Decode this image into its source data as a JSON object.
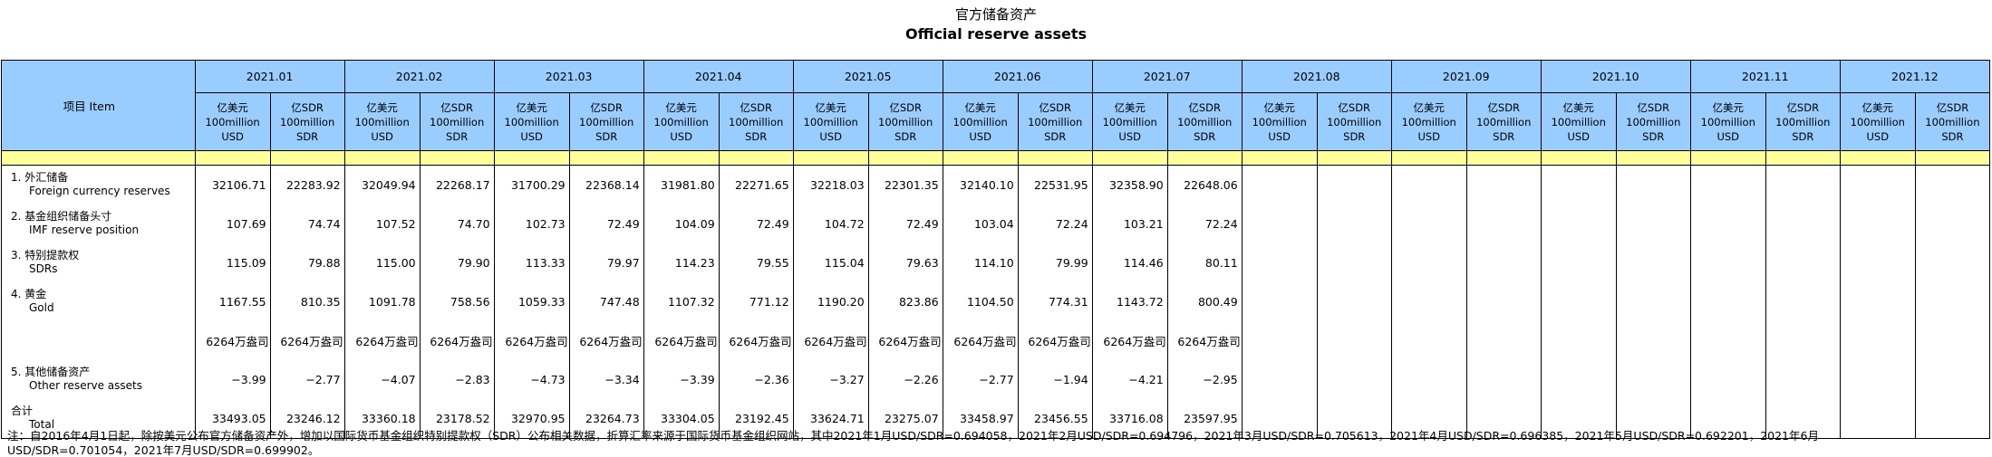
{
  "title_cn": "官方储备资产",
  "title_en": "Official reserve assets",
  "item_header": "项目  Item",
  "months": [
    "2021.01",
    "2021.02",
    "2021.03",
    "2021.04",
    "2021.05",
    "2021.06",
    "2021.07",
    "2021.08",
    "2021.09",
    "2021.10",
    "2021.11",
    "2021.12"
  ],
  "unit_usd": {
    "cn": "亿美元",
    "en1": "100million",
    "en2": "USD"
  },
  "unit_sdr": {
    "cn": "亿SDR",
    "en1": "100million",
    "en2": "SDR"
  },
  "rows": [
    {
      "cn": "1. 外汇储备",
      "en": "Foreign currency reserves",
      "values": [
        "32106.71",
        "22283.92",
        "32049.94",
        "22268.17",
        "31700.29",
        "22368.14",
        "31981.80",
        "22271.65",
        "32218.03",
        "22301.35",
        "32140.10",
        "22531.95",
        "32358.90",
        "22648.06",
        "",
        "",
        "",
        "",
        "",
        "",
        "",
        "",
        "",
        ""
      ]
    },
    {
      "cn": "2. 基金组织储备头寸",
      "en": "IMF reserve position",
      "values": [
        "107.69",
        "74.74",
        "107.52",
        "74.70",
        "102.73",
        "72.49",
        "104.09",
        "72.49",
        "104.72",
        "72.49",
        "103.04",
        "72.24",
        "103.21",
        "72.24",
        "",
        "",
        "",
        "",
        "",
        "",
        "",
        "",
        "",
        ""
      ]
    },
    {
      "cn": "3. 特别提款权",
      "en": "SDRs",
      "values": [
        "115.09",
        "79.88",
        "115.00",
        "79.90",
        "113.33",
        "79.97",
        "114.23",
        "79.55",
        "115.04",
        "79.63",
        "114.10",
        "79.99",
        "114.46",
        "80.11",
        "",
        "",
        "",
        "",
        "",
        "",
        "",
        "",
        "",
        ""
      ]
    },
    {
      "cn": "4. 黄金",
      "en": "Gold",
      "values": [
        "1167.55",
        "810.35",
        "1091.78",
        "758.56",
        "1059.33",
        "747.48",
        "1107.32",
        "771.12",
        "1190.20",
        "823.86",
        "1104.50",
        "774.31",
        "1143.72",
        "800.49",
        "",
        "",
        "",
        "",
        "",
        "",
        "",
        "",
        "",
        ""
      ]
    },
    {
      "cn": "",
      "en": "",
      "values": [
        "6264万盎司",
        "6264万盎司",
        "6264万盎司",
        "6264万盎司",
        "6264万盎司",
        "6264万盎司",
        "6264万盎司",
        "6264万盎司",
        "6264万盎司",
        "6264万盎司",
        "6264万盎司",
        "6264万盎司",
        "6264万盎司",
        "6264万盎司",
        "",
        "",
        "",
        "",
        "",
        "",
        "",
        "",
        "",
        ""
      ]
    },
    {
      "cn": "5. 其他储备资产",
      "en": "Other reserve assets",
      "values": [
        "−3.99",
        "−2.77",
        "−4.07",
        "−2.83",
        "−4.73",
        "−3.34",
        "−3.39",
        "−2.36",
        "−3.27",
        "−2.26",
        "−2.77",
        "−1.94",
        "−4.21",
        "−2.95",
        "",
        "",
        "",
        "",
        "",
        "",
        "",
        "",
        "",
        ""
      ]
    },
    {
      "cn": "合计",
      "en": "Total",
      "values": [
        "33493.05",
        "23246.12",
        "33360.18",
        "23178.52",
        "32970.95",
        "23264.73",
        "33304.05",
        "23192.45",
        "33624.71",
        "23275.07",
        "33458.97",
        "23456.55",
        "33716.08",
        "23597.95",
        "",
        "",
        "",
        "",
        "",
        "",
        "",
        "",
        "",
        ""
      ]
    }
  ],
  "note": "注：自2016年4月1日起，除按美元公布官方储备资产外，增加以国际货币基金组织特别提款权（SDR）公布相关数据，折算汇率来源于国际货币基金组织网站，其中2021年1月USD/SDR=0.694058，2021年2月USD/SDR=0.694796，2021年3月USD/SDR=0.705613，2021年4月USD/SDR=0.696385，2021年5月USD/SDR=0.692201，2021年6月USD/SDR=0.701054，2021年7月USD/SDR=0.699902。",
  "colors": {
    "header_bg": "#99ccff",
    "band_bg": "#ffff99"
  }
}
